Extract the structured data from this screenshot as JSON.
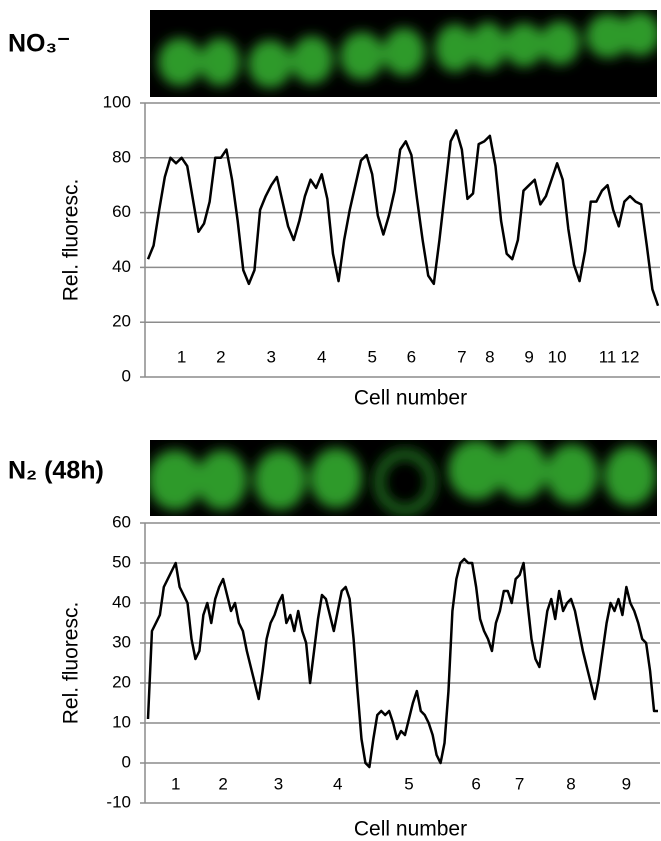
{
  "chart_data": [
    {
      "type": "line",
      "title": "NO₃⁻",
      "y_label": "Rel. fluoresc.",
      "x_label": "Cell number",
      "color": "#000000",
      "grid": true,
      "ylim": [
        0,
        100
      ],
      "yticks": [
        0,
        20,
        40,
        60,
        80,
        100
      ],
      "categories": [
        null,
        null,
        null,
        null,
        null,
        null,
        "1",
        null,
        null,
        null,
        null,
        null,
        null,
        "2",
        null,
        null,
        null,
        null,
        null,
        null,
        null,
        null,
        "3",
        null,
        null,
        null,
        null,
        null,
        null,
        null,
        null,
        "4",
        null,
        null,
        null,
        null,
        null,
        null,
        null,
        null,
        "5",
        null,
        null,
        null,
        null,
        null,
        null,
        "6",
        null,
        null,
        null,
        null,
        null,
        null,
        null,
        null,
        "7",
        null,
        null,
        null,
        null,
        "8",
        null,
        null,
        null,
        null,
        null,
        null,
        "9",
        null,
        null,
        null,
        null,
        "10",
        null,
        null,
        null,
        null,
        null,
        null,
        null,
        null,
        "11",
        null,
        null,
        null,
        "12",
        null,
        null,
        null,
        null,
        null
      ],
      "values": [
        43,
        48,
        61,
        73,
        80,
        78,
        80,
        77,
        65,
        53,
        56,
        64,
        80,
        80,
        83,
        72,
        57,
        39,
        34,
        39,
        61,
        66,
        70,
        73,
        64,
        55,
        50,
        57,
        66,
        72,
        69,
        74,
        65,
        45,
        35,
        50,
        61,
        70,
        79,
        81,
        74,
        59,
        52,
        59,
        68,
        83,
        86,
        81,
        65,
        50,
        37,
        34,
        50,
        68,
        86,
        90,
        83,
        65,
        67,
        85,
        86,
        88,
        77,
        57,
        45,
        43,
        50,
        68,
        70,
        72,
        63,
        66,
        72,
        78,
        72,
        54,
        41,
        35,
        46,
        64,
        64,
        68,
        70,
        61,
        55,
        64,
        66,
        64,
        63,
        48,
        32,
        26
      ]
    },
    {
      "type": "line",
      "title": "N₂ (48h)",
      "y_label": "Rel. fluoresc.",
      "x_label": "Cell number",
      "color": "#000000",
      "grid": true,
      "ylim": [
        -10,
        60
      ],
      "yticks": [
        -10,
        0,
        10,
        20,
        30,
        40,
        50,
        60
      ],
      "categories": [
        null,
        null,
        null,
        null,
        null,
        null,
        null,
        "1",
        null,
        null,
        null,
        null,
        null,
        null,
        null,
        null,
        null,
        null,
        null,
        "2",
        null,
        null,
        null,
        null,
        null,
        null,
        null,
        null,
        null,
        null,
        null,
        null,
        null,
        "3",
        null,
        null,
        null,
        null,
        null,
        null,
        null,
        null,
        null,
        null,
        null,
        null,
        null,
        null,
        "4",
        null,
        null,
        null,
        null,
        null,
        null,
        null,
        null,
        null,
        null,
        null,
        null,
        null,
        null,
        null,
        null,
        null,
        "5",
        null,
        null,
        null,
        null,
        null,
        null,
        null,
        null,
        null,
        null,
        null,
        null,
        null,
        null,
        null,
        null,
        "6",
        null,
        null,
        null,
        null,
        null,
        null,
        null,
        null,
        null,
        null,
        "7",
        null,
        null,
        null,
        null,
        null,
        null,
        null,
        null,
        null,
        null,
        null,
        null,
        "8",
        null,
        null,
        null,
        null,
        null,
        null,
        null,
        null,
        null,
        null,
        null,
        null,
        null,
        "9",
        null,
        null,
        null,
        null,
        null,
        null,
        null,
        null
      ],
      "values": [
        11,
        33,
        35,
        37,
        44,
        46,
        48,
        50,
        44,
        42,
        40,
        31,
        26,
        28,
        37,
        40,
        35,
        41,
        44,
        46,
        42,
        38,
        40,
        35,
        33,
        28,
        24,
        20,
        16,
        23,
        31,
        35,
        37,
        40,
        42,
        35,
        37,
        33,
        38,
        33,
        30,
        20,
        28,
        36,
        42,
        41,
        37,
        33,
        38,
        43,
        44,
        41,
        31,
        18,
        6,
        0,
        -1,
        6,
        12,
        13,
        12,
        13,
        10,
        6,
        8,
        7,
        11,
        15,
        18,
        13,
        12,
        10,
        7,
        2,
        0,
        5,
        18,
        38,
        46,
        50,
        51,
        50,
        50,
        44,
        36,
        33,
        31,
        28,
        35,
        38,
        43,
        43,
        40,
        46,
        47,
        50,
        40,
        31,
        26,
        24,
        31,
        38,
        41,
        36,
        43,
        38,
        40,
        41,
        38,
        33,
        28,
        24,
        20,
        16,
        21,
        28,
        35,
        40,
        38,
        41,
        37,
        44,
        40,
        38,
        35,
        31,
        30,
        23,
        13,
        13
      ]
    }
  ]
}
